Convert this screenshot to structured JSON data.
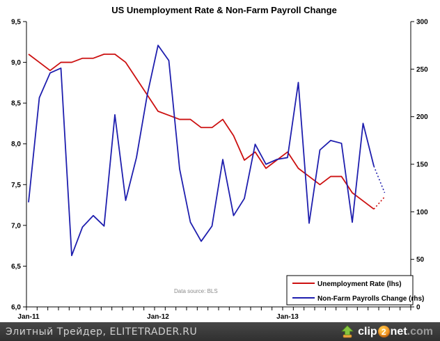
{
  "chart_data": {
    "type": "line",
    "title": "US Unemployment Rate & Non-Farm Payroll Change",
    "annotation": "Data source: BLS",
    "legend_position": "bottom-right",
    "grid": "off",
    "x_axis": {
      "shown_tick_labels": [
        "Jan-11",
        "Jan-12",
        "Jan-13"
      ],
      "shown_tick_month_index": [
        0,
        12,
        24
      ],
      "total_month_slots": 36,
      "minor_ticks": "monthly"
    },
    "left_axis": {
      "min": 6.0,
      "max": 9.5,
      "step": 0.5,
      "tick_labels": [
        "9,5",
        "9,0",
        "8,5",
        "8,0",
        "7,5",
        "7,0",
        "6,5",
        "6,0"
      ]
    },
    "right_axis": {
      "min": 0,
      "max": 300,
      "step": 50,
      "tick_labels": [
        "300",
        "250",
        "200",
        "150",
        "100",
        "50",
        "0"
      ]
    },
    "months": [
      "Jan-11",
      "Feb-11",
      "Mar-11",
      "Apr-11",
      "May-11",
      "Jun-11",
      "Jul-11",
      "Aug-11",
      "Sep-11",
      "Oct-11",
      "Nov-11",
      "Dec-11",
      "Jan-12",
      "Feb-12",
      "Mar-12",
      "Apr-12",
      "May-12",
      "Jun-12",
      "Jul-12",
      "Aug-12",
      "Sep-12",
      "Oct-12",
      "Nov-12",
      "Dec-12",
      "Jan-13",
      "Feb-13",
      "Mar-13",
      "Apr-13",
      "May-13",
      "Jun-13",
      "Jul-13",
      "Aug-13",
      "Sep-13",
      "Oct-13"
    ],
    "forecast_point_index": 33,
    "forecast_style": "dotted",
    "series": [
      {
        "name": "Unemployment Rate (lhs)",
        "axis": "left",
        "color": "#CC1010",
        "values": [
          9.1,
          9.0,
          8.9,
          9.0,
          9.0,
          9.05,
          9.05,
          9.1,
          9.1,
          9.0,
          8.8,
          8.6,
          8.4,
          8.35,
          8.3,
          8.3,
          8.2,
          8.2,
          8.3,
          8.1,
          7.8,
          7.9,
          7.7,
          7.8,
          7.9,
          7.7,
          7.6,
          7.5,
          7.6,
          7.6,
          7.4,
          7.3,
          7.2,
          7.35
        ]
      },
      {
        "name": "Non-Farm Payrolls Change (rhs)",
        "axis": "right",
        "color": "#1E1EAE",
        "values": [
          110,
          220,
          246,
          251,
          54,
          84,
          96,
          85,
          202,
          112,
          157,
          223,
          275,
          259,
          145,
          89,
          69,
          85,
          155,
          96,
          114,
          171,
          150,
          155,
          157,
          236,
          88,
          165,
          175,
          172,
          89,
          193,
          148,
          120
        ]
      }
    ]
  },
  "footer": {
    "site_text": "Элитный Трейдер, ELITETRADER.RU",
    "logo": {
      "prefix": "clip",
      "digit": "2",
      "suffix": "net",
      "domain": ".com"
    }
  }
}
